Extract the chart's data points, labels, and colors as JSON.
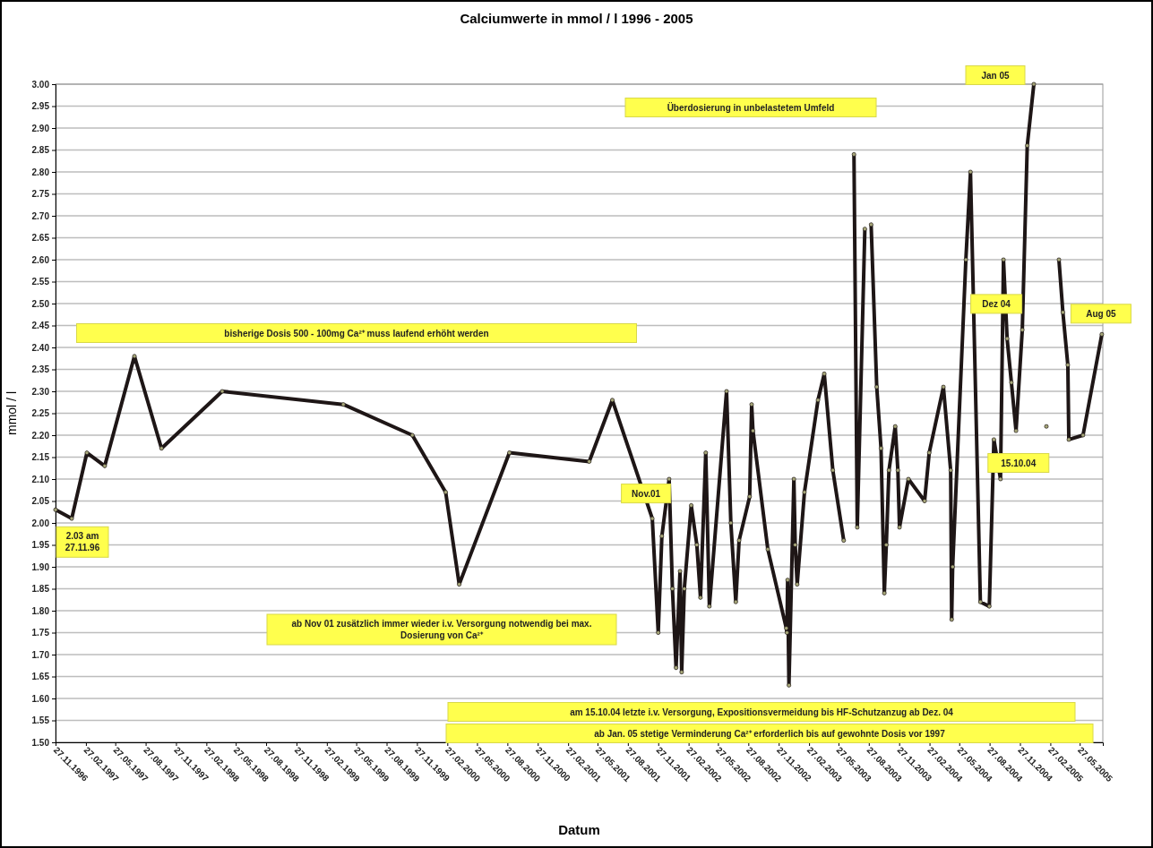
{
  "chart_data": {
    "type": "line",
    "title": "Calciumwerte in mmol / l 1996 - 2005",
    "xlabel": "Datum",
    "ylabel": "mmol / l",
    "x": [
      "1996-11-27",
      "1997-01-15",
      "1997-03-02",
      "1997-04-25",
      "1997-07-24",
      "1997-10-14",
      "1998-04-16",
      "1999-04-18",
      "1999-11-13",
      "2000-02-22",
      "2000-04-03",
      "2000-09-02",
      "2001-05-02",
      "2001-07-11",
      "2001-11-09",
      "2001-11-27",
      "2001-12-08",
      "2001-12-30",
      "2002-01-09",
      "2002-01-20",
      "2002-02-01",
      "2002-02-06",
      "2002-02-14",
      "2002-03-07",
      "2002-03-24",
      "2002-04-04",
      "2002-04-20",
      "2002-05-01",
      "2002-06-22",
      "2002-07-05",
      "2002-07-20",
      "2002-07-30",
      "2002-08-31",
      "2002-09-06",
      "2002-09-10",
      "2002-10-25",
      "2002-12-20",
      "2002-12-22",
      "2002-12-24",
      "2002-12-28",
      "2003-01-12",
      "2003-01-16",
      "2003-01-22",
      "2003-02-13",
      "2003-03-26",
      "2003-04-14",
      "2003-05-10",
      "2003-06-12",
      "2003-06-30",
      "2003-07-13",
      "2003-07-23",
      "2003-08-15",
      "2003-08-25",
      "2003-09-03",
      "2003-09-20",
      "2003-10-03",
      "2003-10-13",
      "2003-10-19",
      "2003-10-27",
      "2003-11-15",
      "2003-11-23",
      "2003-11-28",
      "2003-12-25",
      "2004-02-12",
      "2004-02-26",
      "2004-04-09",
      "2004-05-01",
      "2004-05-04",
      "2004-05-07",
      "2004-06-16",
      "2004-06-30",
      "2004-07-30",
      "2004-08-26",
      "2004-09-09",
      "2004-09-29",
      "2004-10-08",
      "2004-10-19",
      "2004-11-01",
      "2004-11-15",
      "2004-12-04",
      "2004-12-19",
      "2005-01-08",
      "2005-02-02",
      "2005-02-15",
      "2005-03-06",
      "2005-03-25",
      "2005-04-06",
      "2005-04-21",
      "2005-04-24",
      "2005-06-06",
      "2005-08-02"
    ],
    "series": [
      {
        "color": "#1e1616",
        "values": [
          2.03,
          2.01,
          2.16,
          2.13,
          2.38,
          2.17,
          2.3,
          2.27,
          2.2,
          2.07,
          1.86,
          2.16,
          2.14,
          2.28,
          2.01,
          1.75,
          1.97,
          2.1,
          1.85,
          1.67,
          1.89,
          1.66,
          1.85,
          2.04,
          1.95,
          1.83,
          2.16,
          1.81,
          2.3,
          2.0,
          1.82,
          1.96,
          2.06,
          2.27,
          2.21,
          1.94,
          1.76,
          1.75,
          1.87,
          1.63,
          2.1,
          1.95,
          1.86,
          2.07,
          2.28,
          2.34,
          2.12,
          1.96,
          null,
          2.84,
          1.99,
          2.67,
          null,
          2.68,
          2.31,
          2.17,
          1.84,
          1.95,
          2.12,
          2.22,
          2.12,
          1.99,
          2.1,
          2.05,
          2.16,
          2.31,
          2.12,
          1.78,
          1.9,
          2.6,
          2.8,
          1.82,
          1.81,
          2.19,
          2.1,
          2.6,
          2.42,
          2.32,
          2.21,
          2.44,
          2.86,
          3.0,
          null,
          2.22,
          null,
          2.6,
          2.48,
          2.36,
          2.19,
          2.2,
          2.43
        ]
      }
    ],
    "xlim": [
      "1996-11-27",
      "2005-08-05"
    ],
    "xticks": [
      {
        "value": "1996-11-27",
        "label": "27.11.1996"
      },
      {
        "value": "1997-02-27",
        "label": "27.02.1997"
      },
      {
        "value": "1997-05-27",
        "label": "27.05.1997"
      },
      {
        "value": "1997-08-27",
        "label": "27.08.1997"
      },
      {
        "value": "1997-11-27",
        "label": "27.11.1997"
      },
      {
        "value": "1998-02-27",
        "label": "27.02.1998"
      },
      {
        "value": "1998-05-27",
        "label": "27.05.1998"
      },
      {
        "value": "1998-08-27",
        "label": "27.08.1998"
      },
      {
        "value": "1998-11-27",
        "label": "27.11.1998"
      },
      {
        "value": "1999-02-27",
        "label": "27.02.1999"
      },
      {
        "value": "1999-05-27",
        "label": "27.05.1999"
      },
      {
        "value": "1999-08-27",
        "label": "27.08.1999"
      },
      {
        "value": "1999-11-27",
        "label": "27.11.1999"
      },
      {
        "value": "2000-02-27",
        "label": "27.02.2000"
      },
      {
        "value": "2000-05-27",
        "label": "27.05.2000"
      },
      {
        "value": "2000-08-27",
        "label": "27.08.2000"
      },
      {
        "value": "2000-11-27",
        "label": "27.11.2000"
      },
      {
        "value": "2001-02-27",
        "label": "27.02.2001"
      },
      {
        "value": "2001-05-27",
        "label": "27.05.2001"
      },
      {
        "value": "2001-08-27",
        "label": "27.08.2001"
      },
      {
        "value": "2001-11-27",
        "label": "27.11.2001"
      },
      {
        "value": "2002-02-27",
        "label": "27.02.2002"
      },
      {
        "value": "2002-05-27",
        "label": "27.05.2002"
      },
      {
        "value": "2002-08-27",
        "label": "27.08.2002"
      },
      {
        "value": "2002-11-27",
        "label": "27.11.2002"
      },
      {
        "value": "2003-02-27",
        "label": "27.02.2003"
      },
      {
        "value": "2003-05-27",
        "label": "27.05.2003"
      },
      {
        "value": "2003-08-27",
        "label": "27.08.2003"
      },
      {
        "value": "2003-11-27",
        "label": "27.11.2003"
      },
      {
        "value": "2004-02-27",
        "label": "27.02.2004"
      },
      {
        "value": "2004-05-27",
        "label": "27.05.2004"
      },
      {
        "value": "2004-08-27",
        "label": "27.08.2004"
      },
      {
        "value": "2004-11-27",
        "label": "27.11.2004"
      },
      {
        "value": "2005-02-27",
        "label": "27.02.2005"
      },
      {
        "value": "2005-05-27",
        "label": "27.05.2005"
      }
    ],
    "ylim": [
      1.5,
      3.0
    ],
    "yticks": [
      {
        "value": 1.5,
        "label": "1.50"
      },
      {
        "value": 1.55,
        "label": "1.55"
      },
      {
        "value": 1.6,
        "label": "1.60"
      },
      {
        "value": 1.65,
        "label": "1.65"
      },
      {
        "value": 1.7,
        "label": "1.70"
      },
      {
        "value": 1.75,
        "label": "1.75"
      },
      {
        "value": 1.8,
        "label": "1.80"
      },
      {
        "value": 1.85,
        "label": "1.85"
      },
      {
        "value": 1.9,
        "label": "1.90"
      },
      {
        "value": 1.95,
        "label": "1.95"
      },
      {
        "value": 2.0,
        "label": "2.00"
      },
      {
        "value": 2.05,
        "label": "2.05"
      },
      {
        "value": 2.1,
        "label": "2.10"
      },
      {
        "value": 2.15,
        "label": "2.15"
      },
      {
        "value": 2.2,
        "label": "2.20"
      },
      {
        "value": 2.25,
        "label": "2.25"
      },
      {
        "value": 2.3,
        "label": "2.30"
      },
      {
        "value": 2.35,
        "label": "2.35"
      },
      {
        "value": 2.4,
        "label": "2.40"
      },
      {
        "value": 2.45,
        "label": "2.45"
      },
      {
        "value": 2.5,
        "label": "2.50"
      },
      {
        "value": 2.55,
        "label": "2.55"
      },
      {
        "value": 2.6,
        "label": "2.60"
      },
      {
        "value": 2.65,
        "label": "2.65"
      },
      {
        "value": 2.7,
        "label": "2.70"
      },
      {
        "value": 2.75,
        "label": "2.75"
      },
      {
        "value": 2.8,
        "label": "2.80"
      },
      {
        "value": 2.85,
        "label": "2.85"
      },
      {
        "value": 2.9,
        "label": "2.90"
      },
      {
        "value": 2.95,
        "label": "2.95"
      },
      {
        "value": 3.0,
        "label": "3.00"
      }
    ],
    "grid": "y",
    "marker": "circle",
    "line_style": "solid",
    "annotations": [
      "Überdosierung in unbelastetem Umfeld",
      "bisherige Dosis 500 - 100mg Ca²⁺ muss laufend erhöht werden",
      "ab Nov 01  zusätzlich immer wieder i.v. Versorgung notwendig bei max. Dosierung von Ca²⁺",
      "am 15.10.04 letzte i.v. Versorgung, Expositionsvermeidung bis HF-Schutzanzug ab Dez. 04",
      "ab Jan. 05 stetige Verminderung Ca²⁺ erforderlich bis auf gewohnte Dosis vor 1997",
      {
        "text": "2.03 am 27.11.96",
        "x": "1996-11-27",
        "y": 2.03
      },
      {
        "text": "Nov.01",
        "x": "2001-11-09",
        "y": 2.01
      },
      {
        "text": "15.10.04",
        "x": "2004-09-29",
        "y": 2.1
      },
      {
        "text": "Dez 04",
        "x": "2004-12-04",
        "y": 2.44
      },
      {
        "text": "Jan 05",
        "x": "2005-01-08",
        "y": 3.0
      },
      {
        "text": "Aug 05",
        "x": "2005-08-02",
        "y": 2.43
      }
    ]
  }
}
